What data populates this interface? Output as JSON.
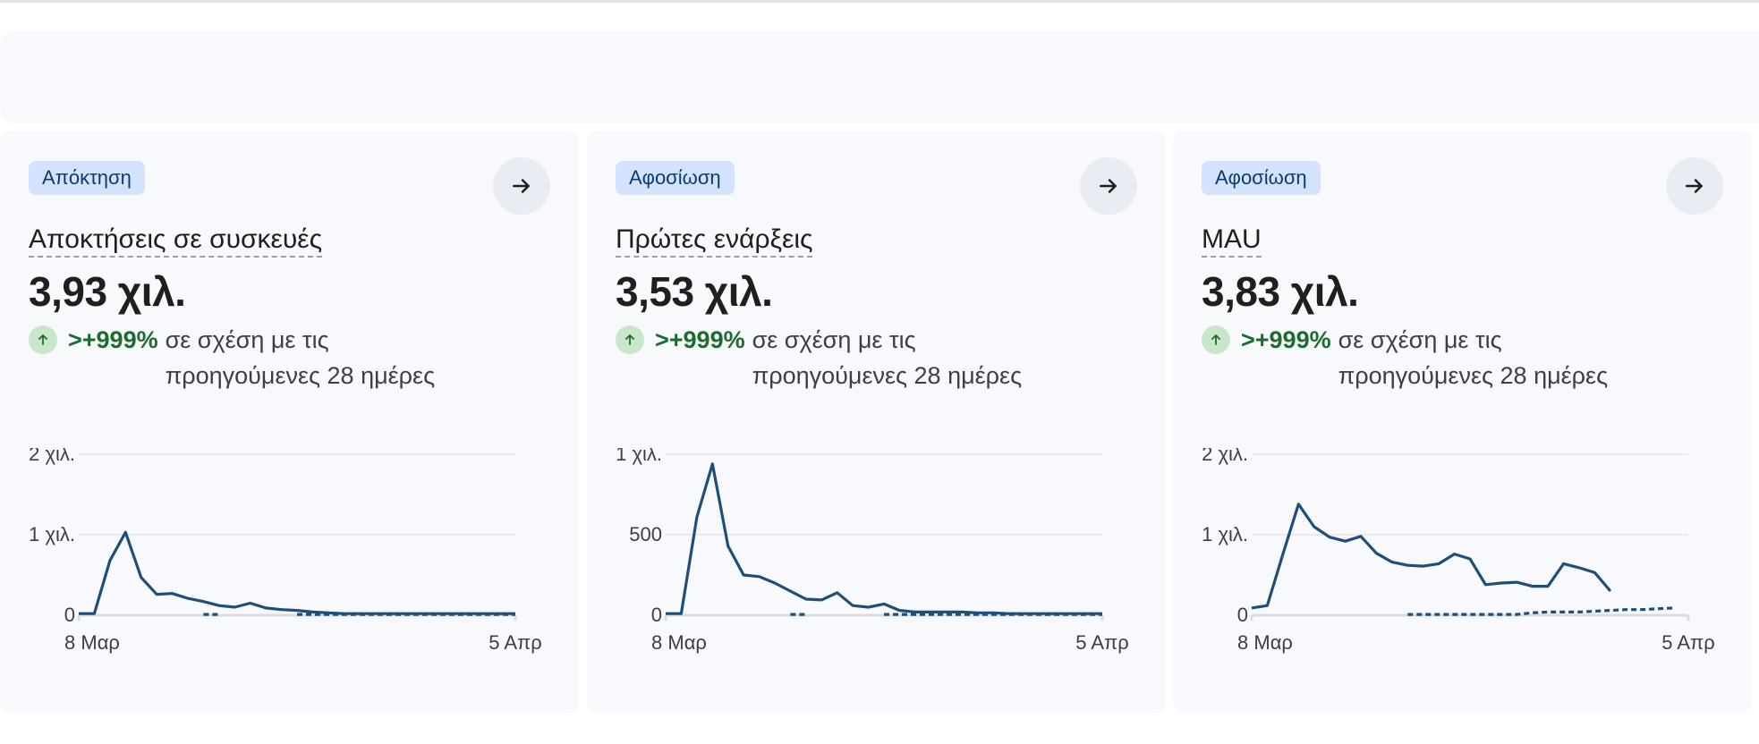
{
  "cards": [
    {
      "chip": "Απόκτηση",
      "title": "Αποκτήσεις σε συσκευές",
      "value": "3,93 χιλ.",
      "change_pct": ">+999%",
      "change_text": "σε σχέση με τις προηγούμενες 28 ημέρες",
      "chart_data": {
        "type": "line",
        "y_ticks": [
          "2 χιλ.",
          "1 χιλ.",
          "0"
        ],
        "x_labels": [
          "8 Μαρ",
          "5 Απρ"
        ],
        "ylim": [
          0,
          2000
        ],
        "x": [
          "8 Μαρ",
          "",
          "",
          "",
          "",
          "",
          "",
          "",
          "",
          "",
          "",
          "",
          "",
          "",
          "",
          "",
          "",
          "",
          "",
          "",
          "",
          "",
          "",
          "",
          "",
          "",
          "",
          "",
          "5 Απρ"
        ],
        "series": [
          {
            "style": "solid",
            "values": [
              20,
              20,
              680,
              1030,
              470,
              260,
              270,
              210,
              170,
              120,
              100,
              150,
              90,
              70,
              60,
              40,
              30,
              20,
              20,
              20,
              20,
              20,
              20,
              20,
              20,
              20,
              20,
              20,
              20
            ]
          },
          {
            "style": "dashed",
            "values": [
              null,
              null,
              null,
              null,
              null,
              null,
              null,
              null,
              10,
              10,
              null,
              null,
              null,
              null,
              10,
              10,
              10,
              10,
              10,
              10,
              10,
              10,
              10,
              10,
              10,
              10,
              10,
              10,
              10
            ]
          }
        ]
      }
    },
    {
      "chip": "Αφοσίωση",
      "title": "Πρώτες ενάρξεις",
      "value": "3,53 χιλ.",
      "change_pct": ">+999%",
      "change_text": "σε σχέση με τις προηγούμενες 28 ημέρες",
      "chart_data": {
        "type": "line",
        "y_ticks": [
          "1 χιλ.",
          "500",
          "0"
        ],
        "x_labels": [
          "8 Μαρ",
          "5 Απρ"
        ],
        "ylim": [
          0,
          1000
        ],
        "x": [
          "8 Μαρ",
          "",
          "",
          "",
          "",
          "",
          "",
          "",
          "",
          "",
          "",
          "",
          "",
          "",
          "",
          "",
          "",
          "",
          "",
          "",
          "",
          "",
          "",
          "",
          "",
          "",
          "",
          "",
          "5 Απρ"
        ],
        "series": [
          {
            "style": "solid",
            "values": [
              10,
              10,
              610,
              940,
              430,
              250,
              240,
              200,
              150,
              100,
              95,
              140,
              60,
              50,
              70,
              30,
              20,
              20,
              20,
              20,
              15,
              15,
              10,
              10,
              10,
              10,
              10,
              10,
              10
            ]
          },
          {
            "style": "dashed",
            "values": [
              null,
              null,
              null,
              null,
              null,
              null,
              null,
              null,
              5,
              5,
              null,
              null,
              null,
              null,
              5,
              5,
              5,
              5,
              5,
              5,
              5,
              5,
              5,
              5,
              5,
              5,
              5,
              5,
              5
            ]
          }
        ]
      }
    },
    {
      "chip": "Αφοσίωση",
      "title": "MAU",
      "value": "3,83 χιλ.",
      "change_pct": ">+999%",
      "change_text": "σε σχέση με τις προηγούμενες 28 ημέρες",
      "chart_data": {
        "type": "line",
        "y_ticks": [
          "2 χιλ.",
          "1 χιλ.",
          "0"
        ],
        "x_labels": [
          "8 Μαρ",
          "5 Απρ"
        ],
        "ylim": [
          0,
          2000
        ],
        "x": [
          "8 Μαρ",
          "",
          "",
          "",
          "",
          "",
          "",
          "",
          "",
          "",
          "",
          "",
          "",
          "",
          "",
          "",
          "",
          "",
          "",
          "",
          "",
          "",
          "",
          "",
          "",
          "",
          "",
          "",
          "5 Απρ"
        ],
        "series": [
          {
            "style": "solid",
            "values": [
              90,
              120,
              760,
              1380,
              1100,
              970,
              920,
              980,
              770,
              660,
              620,
              610,
              640,
              760,
              700,
              380,
              400,
              410,
              360,
              360,
              640,
              590,
              530,
              300,
              null,
              null,
              null,
              null,
              null
            ]
          },
          {
            "style": "dashed",
            "values": [
              null,
              null,
              null,
              null,
              null,
              null,
              null,
              null,
              null,
              null,
              10,
              10,
              10,
              10,
              10,
              10,
              10,
              10,
              30,
              40,
              40,
              40,
              50,
              60,
              70,
              70,
              80,
              90,
              null
            ]
          }
        ]
      }
    }
  ],
  "colors": {
    "line": "#1f4e79",
    "grid": "#e3e6ea",
    "chip_bg": "#d3e3fd",
    "positive": "#1e6b2f"
  },
  "icons": {
    "arrow": "arrow-right-icon",
    "up": "arrow-up-icon"
  }
}
